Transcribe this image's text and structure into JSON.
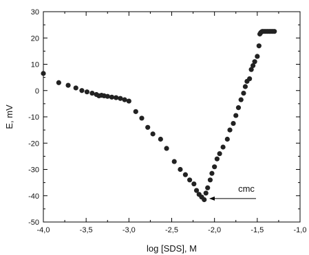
{
  "chart_data": {
    "type": "scatter",
    "xlabel": "log [SDS], M",
    "ylabel": "E, mV",
    "xlim": [
      -4.0,
      -1.0
    ],
    "ylim": [
      -50,
      30
    ],
    "x_ticks": [
      "-4,0",
      "-3,5",
      "-3,0",
      "-2,5",
      "-2,0",
      "-1,5",
      "-1,0"
    ],
    "y_ticks": [
      "-50",
      "-40",
      "-30",
      "-20",
      "-10",
      "0",
      "10",
      "20",
      "30"
    ],
    "grid": false,
    "marker_color": "#222222",
    "annotation": {
      "text": "cmc",
      "x": -2.11,
      "y": -41.2
    },
    "series": [
      {
        "points": [
          [
            -4.0,
            6.5
          ],
          [
            -3.82,
            3.0
          ],
          [
            -3.71,
            2.0
          ],
          [
            -3.62,
            1.0
          ],
          [
            -3.55,
            0.0
          ],
          [
            -3.49,
            -0.5
          ],
          [
            -3.43,
            -1.0
          ],
          [
            -3.38,
            -1.5
          ],
          [
            -3.35,
            -2.0
          ],
          [
            -3.32,
            -1.8
          ],
          [
            -3.29,
            -2.0
          ],
          [
            -3.25,
            -2.2
          ],
          [
            -3.2,
            -2.5
          ],
          [
            -3.15,
            -2.7
          ],
          [
            -3.1,
            -3.0
          ],
          [
            -3.05,
            -3.5
          ],
          [
            -3.0,
            -4.0
          ],
          [
            -2.92,
            -8.0
          ],
          [
            -2.85,
            -10.5
          ],
          [
            -2.78,
            -14.0
          ],
          [
            -2.72,
            -16.5
          ],
          [
            -2.63,
            -18.5
          ],
          [
            -2.56,
            -22.0
          ],
          [
            -2.47,
            -27.0
          ],
          [
            -2.4,
            -30.0
          ],
          [
            -2.34,
            -32.0
          ],
          [
            -2.29,
            -34.0
          ],
          [
            -2.24,
            -35.5
          ],
          [
            -2.21,
            -38.0
          ],
          [
            -2.18,
            -39.5
          ],
          [
            -2.15,
            -40.5
          ],
          [
            -2.12,
            -41.5
          ],
          [
            -2.1,
            -39.0
          ],
          [
            -2.08,
            -37.0
          ],
          [
            -2.05,
            -34.0
          ],
          [
            -2.03,
            -31.5
          ],
          [
            -2.0,
            -29.0
          ],
          [
            -1.97,
            -26.0
          ],
          [
            -1.94,
            -24.0
          ],
          [
            -1.9,
            -21.5
          ],
          [
            -1.85,
            -18.5
          ],
          [
            -1.82,
            -15.0
          ],
          [
            -1.78,
            -12.5
          ],
          [
            -1.75,
            -9.5
          ],
          [
            -1.72,
            -6.5
          ],
          [
            -1.69,
            -3.5
          ],
          [
            -1.66,
            -1.0
          ],
          [
            -1.64,
            1.5
          ],
          [
            -1.62,
            3.5
          ],
          [
            -1.59,
            4.5
          ],
          [
            -1.57,
            8.0
          ],
          [
            -1.55,
            9.5
          ],
          [
            -1.53,
            11.0
          ],
          [
            -1.5,
            13.0
          ],
          [
            -1.48,
            17.0
          ],
          [
            -1.47,
            21.5
          ],
          [
            -1.46,
            22.0
          ],
          [
            -1.45,
            22.3
          ],
          [
            -1.44,
            22.5
          ],
          [
            -1.42,
            22.5
          ],
          [
            -1.4,
            22.5
          ],
          [
            -1.38,
            22.5
          ],
          [
            -1.36,
            22.5
          ],
          [
            -1.34,
            22.5
          ],
          [
            -1.32,
            22.5
          ],
          [
            -1.3,
            22.5
          ]
        ]
      }
    ]
  }
}
